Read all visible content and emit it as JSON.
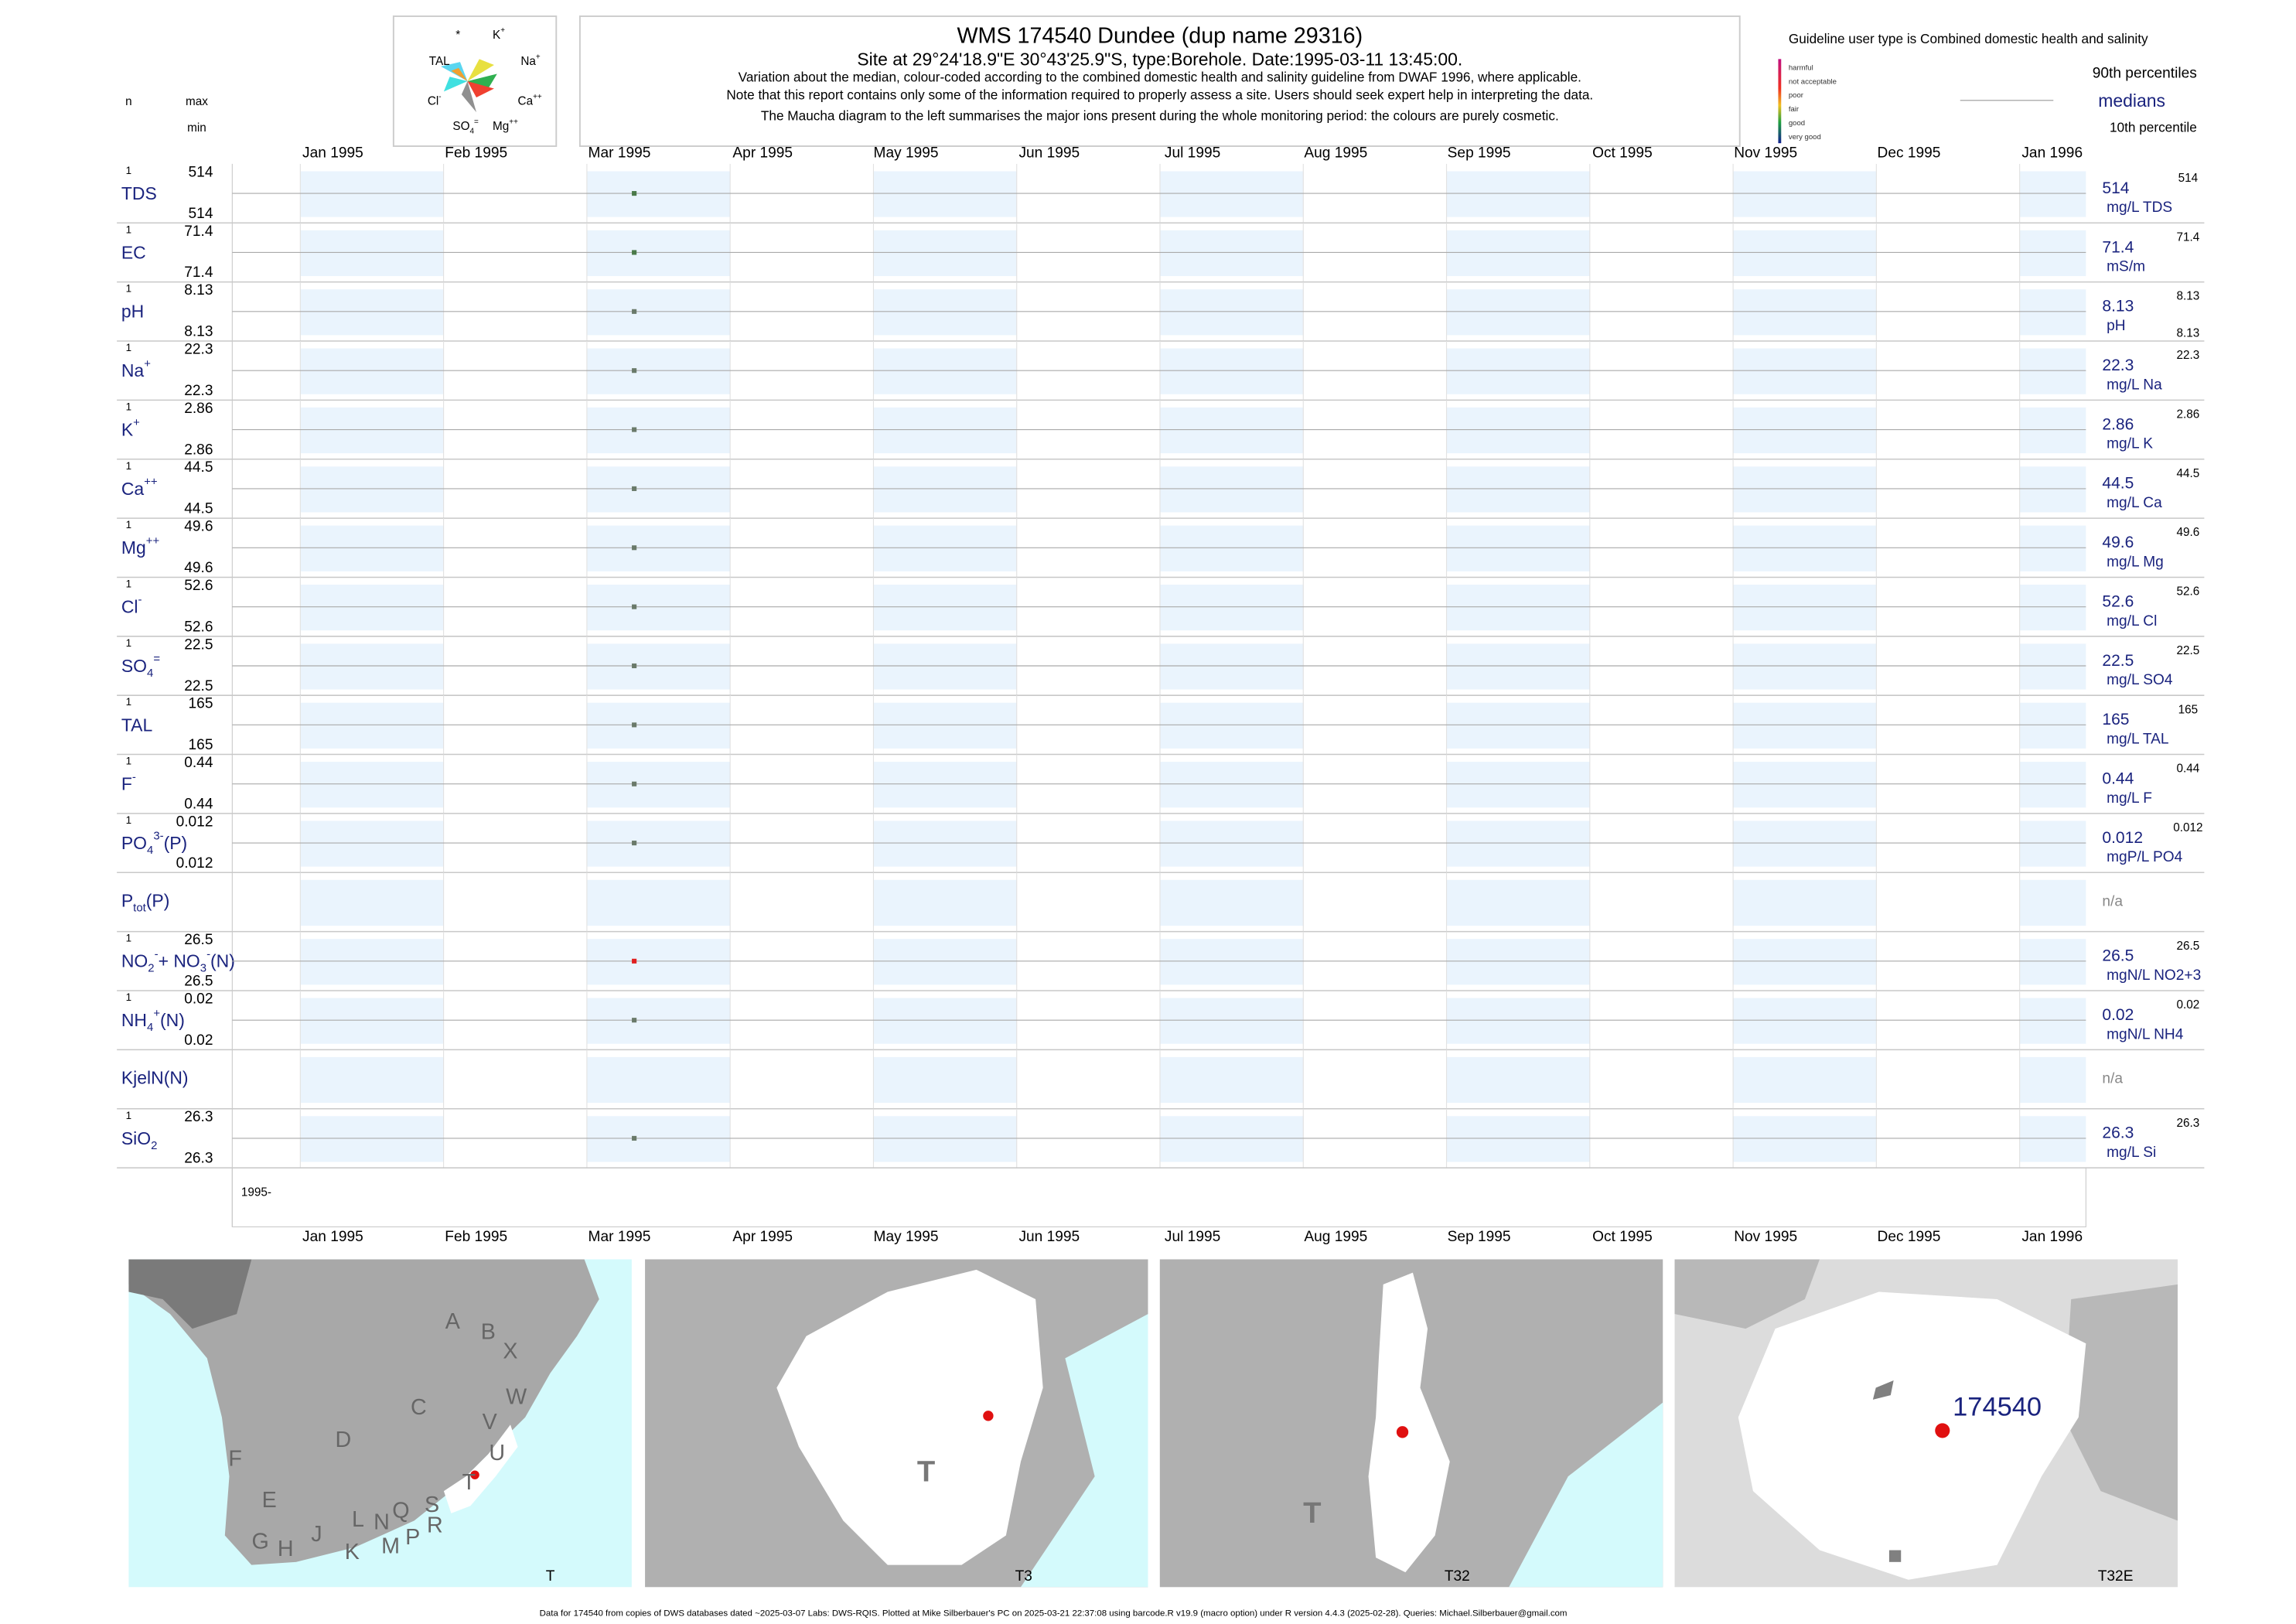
{
  "header": {
    "title": "WMS 174540  Dundee (dup name 29316)",
    "subtitle": "Site at 29°24'18.9\"E 30°43'25.9\"S, type:Borehole. Date:1995-03-11 13:45:00.",
    "notes": [
      "Variation about the median,  colour-coded according to the combined domestic health and salinity guideline from DWAF 1996, where applicable.",
      "Note that this report contains only some of the information required to properly assess a site. Users should seek expert help in interpreting the data.",
      "The Maucha diagram to the left summarises the major ions present during the whole monitoring period: the colours are purely cosmetic."
    ]
  },
  "columns": {
    "n": "n",
    "max": "max",
    "min": "min"
  },
  "maucha": [
    [
      [
        "*"
      ]
    ],
    [
      [
        "K"
      ],
      [
        "+",
        "sup"
      ]
    ],
    [
      [
        "TAL"
      ]
    ],
    [
      [
        "Na"
      ],
      [
        "+",
        "sup"
      ]
    ],
    [
      [
        "Cl"
      ],
      [
        "-",
        "sup"
      ]
    ],
    [
      [
        "Ca"
      ],
      [
        "++",
        "sup"
      ]
    ],
    [
      [
        "SO"
      ],
      [
        "4",
        "sub"
      ],
      [
        "=",
        "sup"
      ]
    ],
    [
      [
        "Mg"
      ],
      [
        "++",
        "sup"
      ]
    ]
  ],
  "guideline": {
    "title": "Guideline user type is Combined domestic health and salinity",
    "levels": [
      "harmful",
      "not acceptable",
      "poor",
      "fair",
      "good",
      "very good"
    ],
    "p90": "90th percentiles",
    "medians": "medians",
    "p10": "10th percentile"
  },
  "months": [
    "Jan 1995",
    "Feb 1995",
    "Mar 1995",
    "Apr 1995",
    "May 1995",
    "Jun 1995",
    "Jul 1995",
    "Aug 1995",
    "Sep 1995",
    "Oct 1995",
    "Nov 1995",
    "Dec 1995",
    "Jan 1996"
  ],
  "year": "1995-",
  "rows": [
    {
      "label": [
        [
          "TDS"
        ]
      ],
      "n": 1,
      "max": 514,
      "min": 514,
      "median": 514,
      "p90": 514,
      "unit": "mg/L TDS",
      "color": "#4a7a4a"
    },
    {
      "label": [
        [
          "EC"
        ]
      ],
      "n": 1,
      "max": 71.4,
      "min": 71.4,
      "median": 71.4,
      "p90": 71.4,
      "unit": "mS/m",
      "color": "#4a7a4a"
    },
    {
      "label": [
        [
          "pH"
        ]
      ],
      "n": 1,
      "max": 8.13,
      "min": 8.13,
      "median": 8.13,
      "p90": 8.13,
      "p10": 8.13,
      "unit": "pH",
      "color": "#6a7a6a"
    },
    {
      "label": [
        [
          "Na"
        ],
        [
          "+",
          "sup"
        ]
      ],
      "n": 1,
      "max": 22.3,
      "min": 22.3,
      "median": 22.3,
      "p90": 22.3,
      "unit": "mg/L Na",
      "color": "#6a7a6a"
    },
    {
      "label": [
        [
          "K"
        ],
        [
          "+",
          "sup"
        ]
      ],
      "n": 1,
      "max": 2.86,
      "min": 2.86,
      "median": 2.86,
      "p90": 2.86,
      "unit": "mg/L K",
      "color": "#6a7a6a"
    },
    {
      "label": [
        [
          "Ca"
        ],
        [
          "++",
          "sup"
        ]
      ],
      "n": 1,
      "max": 44.5,
      "min": 44.5,
      "median": 44.5,
      "p90": 44.5,
      "unit": "mg/L Ca",
      "color": "#6a7a6a"
    },
    {
      "label": [
        [
          "Mg"
        ],
        [
          "++",
          "sup"
        ]
      ],
      "n": 1,
      "max": 49.6,
      "min": 49.6,
      "median": 49.6,
      "p90": 49.6,
      "unit": "mg/L Mg",
      "color": "#6a7a6a"
    },
    {
      "label": [
        [
          "Cl"
        ],
        [
          "-",
          "sup"
        ]
      ],
      "n": 1,
      "max": 52.6,
      "min": 52.6,
      "median": 52.6,
      "p90": 52.6,
      "unit": "mg/L Cl",
      "color": "#6a7a6a"
    },
    {
      "label": [
        [
          "SO"
        ],
        [
          "4",
          "sub"
        ],
        [
          "=",
          "sup"
        ]
      ],
      "n": 1,
      "max": 22.5,
      "min": 22.5,
      "median": 22.5,
      "p90": 22.5,
      "unit": "mg/L SO4",
      "color": "#6a7a6a"
    },
    {
      "label": [
        [
          "TAL"
        ]
      ],
      "n": 1,
      "max": 165,
      "min": 165,
      "median": 165,
      "p90": 165,
      "unit": "mg/L TAL",
      "color": "#6a7a6a"
    },
    {
      "label": [
        [
          "F"
        ],
        [
          "-",
          "sup"
        ]
      ],
      "n": 1,
      "max": 0.44,
      "min": 0.44,
      "median": 0.44,
      "p90": 0.44,
      "unit": "mg/L F",
      "color": "#6a7a6a"
    },
    {
      "label": [
        [
          "PO"
        ],
        [
          "4",
          "sub"
        ],
        [
          "3-",
          "sup"
        ],
        [
          "(P)"
        ]
      ],
      "n": 1,
      "max": 0.012,
      "min": 0.012,
      "median": 0.012,
      "p90": 0.012,
      "unit": "mgP/L PO4",
      "color": "#6a7a6a"
    },
    {
      "label": [
        [
          "P"
        ],
        [
          "tot",
          "sub"
        ],
        [
          "(P)"
        ]
      ],
      "na": "n/a"
    },
    {
      "label": [
        [
          "NO"
        ],
        [
          "2",
          "sub"
        ],
        [
          "-",
          "sup"
        ],
        [
          "+ NO"
        ],
        [
          "3",
          "sub"
        ],
        [
          "-",
          "sup"
        ],
        [
          "(N)"
        ]
      ],
      "n": 1,
      "max": 26.5,
      "min": 26.5,
      "median": 26.5,
      "p90": 26.5,
      "unit": "mgN/L NO2+3",
      "color": "#e02020"
    },
    {
      "label": [
        [
          "NH"
        ],
        [
          "4",
          "sub"
        ],
        [
          "+",
          "sup"
        ],
        [
          "(N)"
        ]
      ],
      "n": 1,
      "max": 0.02,
      "min": 0.02,
      "median": 0.02,
      "p90": 0.02,
      "unit": "mgN/L NH4",
      "color": "#6a7a6a"
    },
    {
      "label": [
        [
          "KjelN(N)"
        ]
      ],
      "na": "n/a"
    },
    {
      "label": [
        [
          "SiO"
        ],
        [
          "2",
          "sub"
        ]
      ],
      "n": 1,
      "max": 26.3,
      "min": 26.3,
      "median": 26.3,
      "p90": 26.3,
      "unit": "mg/L Si",
      "color": "#6a7a6a"
    }
  ],
  "maps": {
    "regions": [
      "A",
      "B",
      "X",
      "W",
      "C",
      "V",
      "D",
      "U",
      "T",
      "F",
      "E",
      "S",
      "Q",
      "G",
      "H",
      "J",
      "L",
      "N",
      "R",
      "P",
      "K",
      "M"
    ],
    "panels": [
      {
        "caption": "T"
      },
      {
        "caption": "T3",
        "label": "T"
      },
      {
        "caption": "T32",
        "label": "T"
      },
      {
        "caption": "T32E",
        "site": "174540"
      }
    ]
  },
  "footer": "Data for 174540 from copies of DWS databases dated ~2025-03-07 Labs: DWS-RQIS. Plotted at Mike Silberbauer's PC on 2025-03-21 22:37:08 using barcode.R v19.9 (macro option) under R version 4.4.3 (2025-02-28). Queries: Michael.Silberbauer@gmail.com"
}
